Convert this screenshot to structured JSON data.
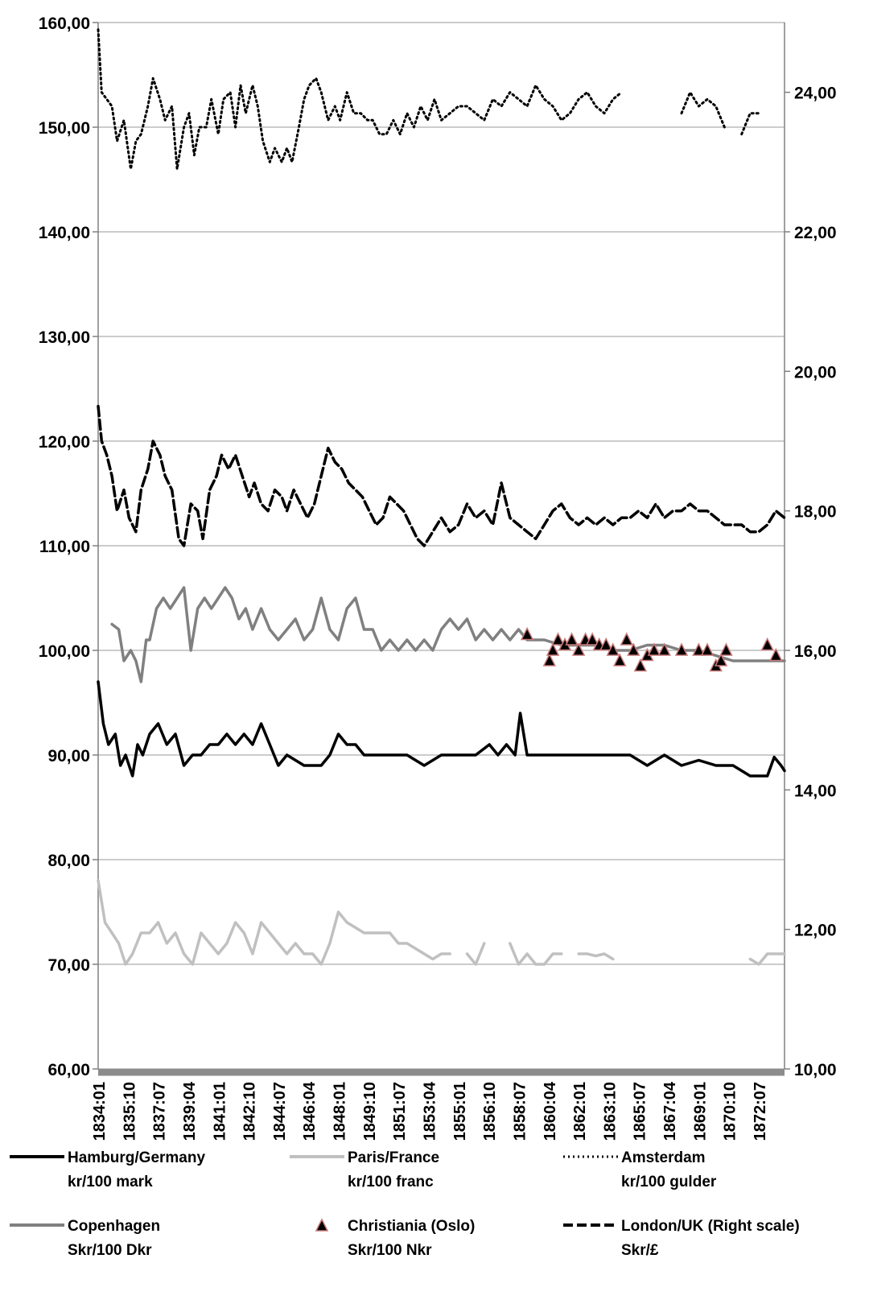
{
  "chart_data": {
    "type": "line",
    "title": "",
    "xlabel": "",
    "ylabel": "",
    "y2label": "",
    "grid": "horizontal",
    "legend_position": "bottom",
    "ylim": [
      60,
      160
    ],
    "y2lim": [
      10,
      25
    ],
    "y_ticks": [
      "60,00",
      "70,00",
      "80,00",
      "90,00",
      "100,00",
      "110,00",
      "120,00",
      "130,00",
      "140,00",
      "150,00",
      "160,00"
    ],
    "y2_ticks": [
      "10,00",
      "12,00",
      "14,00",
      "16,00",
      "18,00",
      "20,00",
      "22,00",
      "24,00"
    ],
    "x_ticks": [
      "1834:01",
      "1835:10",
      "1837:07",
      "1839:04",
      "1841:01",
      "1842:10",
      "1844:07",
      "1846:04",
      "1848:01",
      "1849:10",
      "1851:07",
      "1853:04",
      "1855:01",
      "1856:10",
      "1858:07",
      "1860:04",
      "1862:01",
      "1863:10",
      "1865:07",
      "1867:04",
      "1869:01",
      "1870:10",
      "1872:07"
    ],
    "x_range": [
      1834.0,
      1874.0
    ],
    "series": [
      {
        "name": "Hamburg/Germany kr/100 mark",
        "axis": "left",
        "style": "solid",
        "color": "#000000",
        "x": [
          1834.0,
          1834.3,
          1834.6,
          1835.0,
          1835.3,
          1835.6,
          1836.0,
          1836.3,
          1836.6,
          1837.0,
          1837.5,
          1838.0,
          1838.5,
          1839.0,
          1839.5,
          1840.0,
          1840.5,
          1841.0,
          1841.5,
          1842.0,
          1842.5,
          1843.0,
          1843.5,
          1844.0,
          1844.5,
          1845.0,
          1846.0,
          1847.0,
          1847.5,
          1848.0,
          1848.5,
          1849.0,
          1849.5,
          1850.0,
          1851.0,
          1852.0,
          1853.0,
          1854.0,
          1855.0,
          1856.0,
          1856.8,
          1857.3,
          1857.8,
          1858.3,
          1858.6,
          1859.0,
          1860.0,
          1861.0,
          1862.0,
          1863.0,
          1864.0,
          1865.0,
          1866.0,
          1867.0,
          1868.0,
          1869.0,
          1870.0,
          1871.0,
          1872.0,
          1873.0,
          1873.4,
          1873.8,
          1874.0
        ],
        "values": [
          97,
          93,
          91,
          92,
          89,
          90,
          88,
          91,
          90,
          92,
          93,
          91,
          92,
          89,
          90,
          90,
          91,
          91,
          92,
          91,
          92,
          91,
          93,
          91,
          89,
          90,
          89,
          89,
          90,
          92,
          91,
          91,
          90,
          90,
          90,
          90,
          89,
          90,
          90,
          90,
          91,
          90,
          91,
          90,
          94,
          90,
          90,
          90,
          90,
          90,
          90,
          90,
          89,
          90,
          89,
          89.5,
          89,
          89,
          88,
          88,
          89.8,
          89,
          88.5
        ]
      },
      {
        "name": "Paris/France kr/100 franc",
        "axis": "left",
        "style": "solid",
        "color": "#c0c0c0",
        "x": [
          1834.0,
          1834.4,
          1834.8,
          1835.2,
          1835.6,
          1836.0,
          1836.5,
          1837.0,
          1837.5,
          1838.0,
          1838.5,
          1839.0,
          1839.5,
          1840.0,
          1840.5,
          1841.0,
          1841.5,
          1842.0,
          1842.5,
          1843.0,
          1843.5,
          1844.0,
          1844.5,
          1845.0,
          1845.5,
          1846.0,
          1846.5,
          1847.0,
          1847.5,
          1848.0,
          1848.5,
          1849.0,
          1849.5,
          1850.0,
          1851.0,
          1851.5,
          1852.0,
          1853.0,
          1853.5,
          1854.0,
          1854.5,
          1855.0,
          1855.5,
          1856.0,
          1856.5,
          1857.0,
          1858.0,
          1858.5,
          1859.0,
          1859.5,
          1860.0,
          1860.5,
          1861.0,
          1861.5,
          1862.0,
          1862.5,
          1863.0,
          1863.5,
          1864.0,
          1865.0,
          1866.0,
          1867.0,
          1868.0,
          1869.0,
          1870.0,
          1870.5,
          1871.0,
          1872.0,
          1872.5,
          1873.0,
          1874.0
        ],
        "values": [
          78,
          74,
          73,
          72,
          70,
          71,
          73,
          73,
          74,
          72,
          73,
          71,
          70,
          73,
          72,
          71,
          72,
          74,
          73,
          71,
          74,
          73,
          72,
          71,
          72,
          71,
          71,
          70,
          72,
          75,
          74,
          73.5,
          73,
          73,
          73,
          72,
          72,
          71,
          70.5,
          71,
          71,
          null,
          71,
          70,
          72,
          null,
          72,
          70,
          71,
          70,
          70,
          71,
          71,
          null,
          71,
          71,
          70.8,
          71,
          70.5,
          null,
          null,
          null,
          72,
          null,
          null,
          71.5,
          null,
          70.5,
          70,
          71,
          71
        ]
      },
      {
        "name": "Amsterdam kr/100 gulder",
        "axis": "right",
        "style": "dotted",
        "color": "#000000",
        "x": [
          1834.0,
          1834.2,
          1834.5,
          1834.8,
          1835.1,
          1835.5,
          1835.9,
          1836.2,
          1836.5,
          1836.9,
          1837.2,
          1837.6,
          1837.9,
          1838.3,
          1838.6,
          1839.0,
          1839.3,
          1839.6,
          1839.9,
          1840.3,
          1840.6,
          1841.0,
          1841.3,
          1841.7,
          1842.0,
          1842.3,
          1842.6,
          1843.0,
          1843.3,
          1843.6,
          1844.0,
          1844.3,
          1844.7,
          1845.0,
          1845.3,
          1845.7,
          1846.0,
          1846.3,
          1846.7,
          1847.0,
          1847.4,
          1847.8,
          1848.1,
          1848.5,
          1848.9,
          1849.3,
          1849.7,
          1850.0,
          1850.4,
          1850.8,
          1851.2,
          1851.6,
          1852.0,
          1852.4,
          1852.8,
          1853.2,
          1853.6,
          1854.0,
          1854.5,
          1855.0,
          1855.5,
          1856.0,
          1856.5,
          1857.0,
          1857.5,
          1858.0,
          1858.5,
          1859.0,
          1859.5,
          1860.0,
          1860.5,
          1861.0,
          1861.5,
          1862.0,
          1862.5,
          1863.0,
          1863.5,
          1864.0,
          1864.5,
          1865.0,
          1865.5,
          1866.0,
          1866.5,
          1867.0,
          1867.5,
          1868.0,
          1868.5,
          1869.0,
          1869.5,
          1870.0,
          1870.5,
          1871.0,
          1871.5,
          1872.0,
          1872.5,
          1873.0,
          1873.5,
          1874.0
        ],
        "values": [
          24.9,
          24.0,
          23.9,
          23.8,
          23.3,
          23.6,
          22.9,
          23.3,
          23.4,
          23.8,
          24.2,
          23.9,
          23.6,
          23.8,
          22.9,
          23.5,
          23.7,
          23.1,
          23.5,
          23.5,
          23.9,
          23.4,
          23.9,
          24.0,
          23.5,
          24.1,
          23.7,
          24.1,
          23.8,
          23.3,
          23.0,
          23.2,
          23.0,
          23.2,
          23.0,
          23.5,
          23.9,
          24.1,
          24.2,
          24.0,
          23.6,
          23.8,
          23.6,
          24.0,
          23.7,
          23.7,
          23.6,
          23.6,
          23.4,
          23.4,
          23.6,
          23.4,
          23.7,
          23.5,
          23.8,
          23.6,
          23.9,
          23.6,
          23.7,
          23.8,
          23.8,
          23.7,
          23.6,
          23.9,
          23.8,
          24.0,
          23.9,
          23.8,
          24.1,
          23.9,
          23.8,
          23.6,
          23.7,
          23.9,
          24.0,
          23.8,
          23.7,
          23.9,
          24.0,
          null,
          23.9,
          null,
          null,
          23.9,
          null,
          23.7,
          24.0,
          23.8,
          23.9,
          23.8,
          23.5,
          null,
          23.4,
          23.7,
          23.7,
          null,
          null,
          null
        ]
      },
      {
        "name": "Copenhagen Skr/100 Dkr",
        "axis": "left",
        "style": "solid",
        "color": "#808080",
        "x": [
          1834.8,
          1835.2,
          1835.5,
          1835.9,
          1836.2,
          1836.5,
          1836.8,
          1837.0,
          1837.4,
          1837.8,
          1838.2,
          1838.6,
          1839.0,
          1839.4,
          1839.8,
          1840.2,
          1840.6,
          1841.0,
          1841.4,
          1841.8,
          1842.2,
          1842.6,
          1843.0,
          1843.5,
          1844.0,
          1844.5,
          1845.0,
          1845.5,
          1846.0,
          1846.5,
          1847.0,
          1847.5,
          1848.0,
          1848.5,
          1849.0,
          1849.5,
          1850.0,
          1850.5,
          1851.0,
          1851.5,
          1852.0,
          1852.5,
          1853.0,
          1853.5,
          1854.0,
          1854.5,
          1855.0,
          1855.5,
          1856.0,
          1856.5,
          1857.0,
          1857.5,
          1858.0,
          1858.5,
          1859.0,
          1860.0,
          1861.0,
          1862.0,
          1863.0,
          1864.0,
          1865.0,
          1866.0,
          1867.0,
          1868.0,
          1869.0,
          1870.0,
          1871.0,
          1872.0,
          1873.0,
          1874.0
        ],
        "values": [
          102.5,
          102,
          99,
          100,
          99,
          97,
          101,
          101,
          104,
          105,
          104,
          105,
          106,
          100,
          104,
          105,
          104,
          105,
          106,
          105,
          103,
          104,
          102,
          104,
          102,
          101,
          102,
          103,
          101,
          102,
          105,
          102,
          101,
          104,
          105,
          102,
          102,
          100,
          101,
          100,
          101,
          100,
          101,
          100,
          102,
          103,
          102,
          103,
          101,
          102,
          101,
          102,
          101,
          102,
          101,
          101,
          100.5,
          100.5,
          100.5,
          100,
          100,
          100.5,
          100.5,
          100,
          100,
          99.5,
          99,
          99,
          99,
          99
        ]
      },
      {
        "name": "Christiania (Oslo) Skr/100 Nkr",
        "axis": "left",
        "style": "marker-triangle",
        "color": "#000000",
        "x": [
          1859.0,
          1860.3,
          1860.5,
          1860.8,
          1861.2,
          1861.6,
          1862.0,
          1862.4,
          1862.8,
          1863.2,
          1863.6,
          1864.0,
          1864.4,
          1864.8,
          1865.2,
          1865.6,
          1866.0,
          1866.4,
          1867.0,
          1868.0,
          1869.0,
          1869.5,
          1870.0,
          1870.3,
          1870.6,
          1873.0,
          1873.5
        ],
        "values": [
          101.5,
          99,
          100,
          101,
          100.5,
          101,
          100,
          101,
          101,
          100.5,
          100.5,
          100,
          99,
          101,
          100,
          98.5,
          99.5,
          100,
          100,
          100,
          100,
          100,
          98.5,
          99,
          100,
          100.5,
          99.5
        ]
      },
      {
        "name": "London/UK (Right scale) Skr/£",
        "axis": "right",
        "style": "dashed",
        "color": "#000000",
        "x": [
          1834.0,
          1834.2,
          1834.5,
          1834.8,
          1835.1,
          1835.5,
          1835.8,
          1836.2,
          1836.5,
          1836.9,
          1837.2,
          1837.6,
          1837.9,
          1838.3,
          1838.7,
          1839.0,
          1839.4,
          1839.8,
          1840.1,
          1840.5,
          1840.9,
          1841.2,
          1841.6,
          1842.0,
          1842.4,
          1842.8,
          1843.1,
          1843.5,
          1843.9,
          1844.3,
          1844.7,
          1845.0,
          1845.4,
          1845.8,
          1846.2,
          1846.6,
          1847.0,
          1847.4,
          1847.8,
          1848.2,
          1848.6,
          1849.0,
          1849.4,
          1849.8,
          1850.2,
          1850.6,
          1851.0,
          1851.4,
          1851.8,
          1852.2,
          1852.6,
          1853.0,
          1853.5,
          1854.0,
          1854.5,
          1855.0,
          1855.5,
          1856.0,
          1856.5,
          1857.0,
          1857.5,
          1858.0,
          1858.5,
          1859.0,
          1859.5,
          1860.0,
          1860.5,
          1861.0,
          1861.5,
          1862.0,
          1862.5,
          1863.0,
          1863.5,
          1864.0,
          1864.5,
          1865.0,
          1865.5,
          1866.0,
          1866.5,
          1867.0,
          1867.5,
          1868.0,
          1868.5,
          1869.0,
          1869.5,
          1870.0,
          1870.5,
          1871.0,
          1871.5,
          1872.0,
          1872.5,
          1873.0,
          1873.5,
          1874.0
        ],
        "values": [
          19.5,
          19.0,
          18.8,
          18.5,
          18.0,
          18.3,
          17.9,
          17.7,
          18.3,
          18.6,
          19.0,
          18.8,
          18.5,
          18.3,
          17.6,
          17.5,
          18.1,
          18.0,
          17.6,
          18.3,
          18.5,
          18.8,
          18.6,
          18.8,
          18.5,
          18.2,
          18.4,
          18.1,
          18.0,
          18.3,
          18.2,
          18.0,
          18.3,
          18.1,
          17.9,
          18.1,
          18.5,
          18.9,
          18.7,
          18.6,
          18.4,
          18.3,
          18.2,
          18.0,
          17.8,
          17.9,
          18.2,
          18.1,
          18.0,
          17.8,
          17.6,
          17.5,
          17.7,
          17.9,
          17.7,
          17.8,
          18.1,
          17.9,
          18.0,
          17.8,
          18.4,
          17.9,
          17.8,
          17.7,
          17.6,
          17.8,
          18.0,
          18.1,
          17.9,
          17.8,
          17.9,
          17.8,
          17.9,
          17.8,
          17.9,
          17.9,
          18.0,
          17.9,
          18.1,
          17.9,
          18.0,
          18.0,
          18.1,
          18.0,
          18.0,
          17.9,
          17.8,
          17.8,
          17.8,
          17.7,
          17.7,
          17.8,
          18.0,
          17.9
        ]
      }
    ],
    "legend": [
      {
        "line1": "Hamburg/Germany",
        "line2": "kr/100 mark",
        "style": "solid",
        "color": "#000000"
      },
      {
        "line1": "Paris/France",
        "line2": "kr/100 franc",
        "style": "solid",
        "color": "#c0c0c0"
      },
      {
        "line1": "Amsterdam",
        "line2": "kr/100 gulder",
        "style": "dotted",
        "color": "#000000"
      },
      {
        "line1": "Copenhagen",
        "line2": "Skr/100 Dkr",
        "style": "solid",
        "color": "#808080"
      },
      {
        "line1": "Christiania (Oslo)",
        "line2": "Skr/100 Nkr",
        "style": "marker-triangle",
        "color": "#000000"
      },
      {
        "line1": "London/UK (Right scale)",
        "line2": "Skr/£",
        "style": "dashed",
        "color": "#000000"
      }
    ]
  }
}
